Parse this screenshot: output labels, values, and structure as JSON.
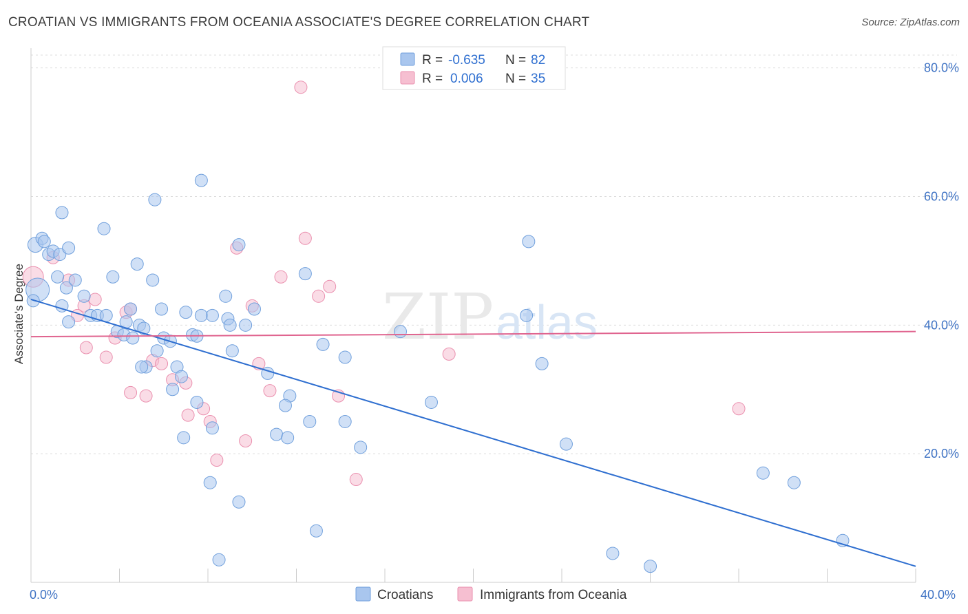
{
  "title": "CROATIAN VS IMMIGRANTS FROM OCEANIA ASSOCIATE'S DEGREE CORRELATION CHART",
  "source": "Source: ZipAtlas.com",
  "watermark": {
    "zip": "ZIP",
    "atlas": "atlas"
  },
  "colors": {
    "blue_fill": "#a9c6ee",
    "blue_stroke": "#6f9fdc",
    "blue_line": "#2f6fd0",
    "pink_fill": "#f6bfd1",
    "pink_stroke": "#ea8fae",
    "pink_line": "#e0648f",
    "grid": "#dcdcdc",
    "axis_text": "#3f73c4"
  },
  "legend_top": [
    {
      "r_label": "R =",
      "r_value": "-0.635",
      "n_label": "N =",
      "n_value": "82"
    },
    {
      "r_label": "R =",
      "r_value": "0.006",
      "n_label": "N =",
      "n_value": "35"
    }
  ],
  "legend_bottom": [
    "Croatians",
    "Immigrants from Oceania"
  ],
  "chart_data": {
    "type": "scatter",
    "xlabel": "",
    "ylabel": "Associate's Degree",
    "xlim": [
      0,
      40
    ],
    "ylim": [
      0,
      82
    ],
    "x_ticks_labels": {
      "left": "0.0%",
      "right": "40.0%"
    },
    "y_ticks": [
      {
        "value": 20,
        "label": "20.0%"
      },
      {
        "value": 40,
        "label": "40.0%"
      },
      {
        "value": 60,
        "label": "60.0%"
      },
      {
        "value": 80,
        "label": "80.0%"
      }
    ],
    "series": [
      {
        "name": "Croatians",
        "trend": {
          "x": [
            0,
            40
          ],
          "y": [
            44.0,
            2.5
          ]
        },
        "points": [
          [
            0.2,
            52.5
          ],
          [
            0.5,
            53.5
          ],
          [
            0.6,
            53
          ],
          [
            0.8,
            51
          ],
          [
            1.0,
            51.5
          ],
          [
            1.3,
            51
          ],
          [
            1.7,
            52
          ],
          [
            1.4,
            57.5
          ],
          [
            3.3,
            55
          ],
          [
            0.3,
            45.5
          ],
          [
            1.2,
            47.5
          ],
          [
            1.6,
            45.8
          ],
          [
            2.0,
            47
          ],
          [
            3.7,
            47.5
          ],
          [
            4.8,
            49.5
          ],
          [
            5.5,
            47
          ],
          [
            1.4,
            43
          ],
          [
            1.7,
            40.5
          ],
          [
            2.4,
            44.5
          ],
          [
            2.7,
            41.5
          ],
          [
            3.0,
            41.5
          ],
          [
            3.4,
            41.5
          ],
          [
            3.9,
            39
          ],
          [
            4.2,
            38.5
          ],
          [
            4.3,
            40.5
          ],
          [
            4.5,
            42.5
          ],
          [
            4.6,
            38
          ],
          [
            4.9,
            40
          ],
          [
            5.1,
            39.5
          ],
          [
            5.2,
            33.5
          ],
          [
            5.7,
            36
          ],
          [
            5.9,
            42.5
          ],
          [
            6.0,
            38
          ],
          [
            6.3,
            37.5
          ],
          [
            6.6,
            33.5
          ],
          [
            6.8,
            32
          ],
          [
            7.0,
            42
          ],
          [
            7.3,
            38.5
          ],
          [
            7.5,
            38.3
          ],
          [
            7.7,
            41.5
          ],
          [
            6.4,
            30
          ],
          [
            8.8,
            44.5
          ],
          [
            8.2,
            41.5
          ],
          [
            8.9,
            41
          ],
          [
            9.0,
            40
          ],
          [
            9.7,
            40
          ],
          [
            9.4,
            52.5
          ],
          [
            10.1,
            42.5
          ],
          [
            9.1,
            36
          ],
          [
            10.7,
            32.5
          ],
          [
            12.4,
            48
          ],
          [
            13.2,
            37
          ],
          [
            14.2,
            35
          ],
          [
            16.7,
            39
          ],
          [
            18.1,
            28
          ],
          [
            5.6,
            59.5
          ],
          [
            7.7,
            62.5
          ],
          [
            7.5,
            28
          ],
          [
            8.2,
            24
          ],
          [
            6.9,
            22.5
          ],
          [
            8.1,
            15.5
          ],
          [
            8.5,
            3.5
          ],
          [
            9.4,
            12.5
          ],
          [
            11.1,
            23
          ],
          [
            11.6,
            22.5
          ],
          [
            11.7,
            29
          ],
          [
            11.5,
            27.5
          ],
          [
            12.6,
            25
          ],
          [
            12.9,
            8
          ],
          [
            14.2,
            25
          ],
          [
            14.9,
            21
          ],
          [
            22.5,
            53
          ],
          [
            22.4,
            41.5
          ],
          [
            23.1,
            34
          ],
          [
            24.2,
            21.5
          ],
          [
            26.3,
            4.5
          ],
          [
            28.0,
            2.5
          ],
          [
            33.1,
            17
          ],
          [
            34.5,
            15.5
          ],
          [
            36.7,
            6.5
          ],
          [
            0.1,
            43.8
          ],
          [
            5.0,
            33.5
          ]
        ]
      },
      {
        "name": "Immigrants from Oceania",
        "trend": {
          "x": [
            0,
            40
          ],
          "y": [
            38.2,
            39.0
          ]
        },
        "points": [
          [
            0.1,
            47.5
          ],
          [
            1.0,
            50.5
          ],
          [
            1.7,
            47
          ],
          [
            2.1,
            41.5
          ],
          [
            2.4,
            43
          ],
          [
            2.5,
            36.5
          ],
          [
            2.9,
            44
          ],
          [
            3.4,
            35
          ],
          [
            3.8,
            38
          ],
          [
            4.3,
            42
          ],
          [
            4.5,
            29.5
          ],
          [
            5.2,
            29
          ],
          [
            5.5,
            34.5
          ],
          [
            5.9,
            34
          ],
          [
            6.4,
            31.5
          ],
          [
            7.0,
            31
          ],
          [
            7.1,
            26
          ],
          [
            7.8,
            27
          ],
          [
            8.1,
            25
          ],
          [
            8.4,
            19
          ],
          [
            9.3,
            52
          ],
          [
            9.7,
            22
          ],
          [
            10.0,
            43
          ],
          [
            10.3,
            34
          ],
          [
            10.8,
            29.8
          ],
          [
            11.3,
            47.5
          ],
          [
            12.2,
            77
          ],
          [
            12.4,
            53.5
          ],
          [
            13.0,
            44.5
          ],
          [
            13.5,
            46
          ],
          [
            13.9,
            29
          ],
          [
            14.7,
            16
          ],
          [
            18.9,
            35.5
          ],
          [
            32.0,
            27
          ],
          [
            4.5,
            42.5
          ]
        ]
      }
    ]
  }
}
